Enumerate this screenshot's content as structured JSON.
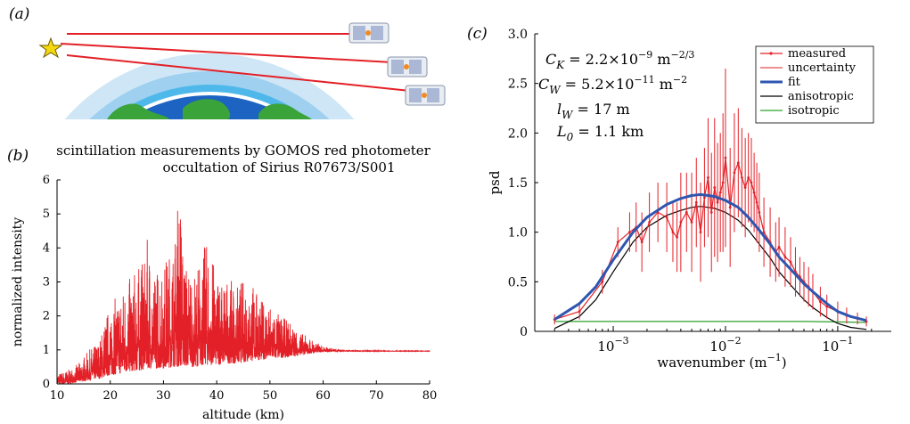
{
  "panel_labels": {
    "a": "(a)",
    "b": "(b)",
    "c": "(c)"
  },
  "colors": {
    "measured": "#e32027",
    "fit": "#2e56b0",
    "anisotropic": "#000000",
    "isotropic": "#2ca02c",
    "earth_ocean": "#1c63c2",
    "earth_land": "#3aa33a",
    "atmosphere_layers": [
      "#cfe6f6",
      "#9fd0f0",
      "#4fb8ea",
      "#ffffff"
    ],
    "star": "#f5d90f"
  },
  "chart_data": [
    {
      "id": "b",
      "type": "area",
      "title": "scintillation measurements by GOMOS red photometer",
      "subtitle": "occultation of Sirius R07673/S001",
      "xlabel": "altitude (km)",
      "ylabel": "normalized intensity",
      "xlim": [
        10,
        80
      ],
      "ylim": [
        0,
        6
      ],
      "xticks": [
        10,
        20,
        30,
        40,
        50,
        60,
        70,
        80
      ],
      "yticks": [
        0,
        1,
        2,
        3,
        4,
        5,
        6
      ],
      "series": [
        {
          "color": "#e32027",
          "envelope_altitude": [
            10,
            12,
            14,
            16,
            18,
            20,
            22,
            24,
            26,
            27,
            28,
            30,
            32,
            33,
            34,
            36,
            38,
            40,
            42,
            44,
            46,
            48,
            50,
            52,
            54,
            56,
            58,
            60,
            62,
            64,
            70,
            80
          ],
          "envelope_upper": [
            0.3,
            0.4,
            0.6,
            1.0,
            1.3,
            2.4,
            2.7,
            3.2,
            3.6,
            4.3,
            3.3,
            3.6,
            4.1,
            5.85,
            3.6,
            3.3,
            4.2,
            3.3,
            3.1,
            2.9,
            3.3,
            2.5,
            2.4,
            2.0,
            1.8,
            1.5,
            1.3,
            1.1,
            1.05,
            1.0,
            0.98,
            0.97
          ],
          "envelope_lower": [
            0.0,
            0.0,
            0.05,
            0.1,
            0.15,
            0.25,
            0.3,
            0.35,
            0.4,
            0.45,
            0.45,
            0.45,
            0.5,
            0.5,
            0.5,
            0.5,
            0.55,
            0.55,
            0.6,
            0.6,
            0.65,
            0.7,
            0.72,
            0.75,
            0.8,
            0.85,
            0.9,
            0.95,
            0.95,
            0.96,
            0.96,
            0.96
          ]
        }
      ]
    },
    {
      "id": "c",
      "type": "line",
      "xlabel": "wavenumber (m",
      "xlabel_sup": "−1",
      "xlabel_tail": ")",
      "ylabel": "psd",
      "xscale": "log",
      "xlim": [
        0.0002,
        0.3
      ],
      "ylim": [
        0,
        3.0
      ],
      "xticks": [
        {
          "value": 0.001,
          "base": "10",
          "exp": "−3"
        },
        {
          "value": 0.01,
          "base": "10",
          "exp": "−2"
        },
        {
          "value": 0.1,
          "base": "10",
          "exp": "−1"
        }
      ],
      "yticks": [
        "0",
        "0.5",
        "1.0",
        "1.5",
        "2.0",
        "2.5",
        "3.0"
      ],
      "annotations": [
        {
          "sym": "C",
          "sub": "K",
          "eq": " = 2.2×10",
          "sup": "−9",
          "unit": " m",
          "unit_sup": "−2/3"
        },
        {
          "sym": "C",
          "sub": "W",
          "eq": " = 5.2×10",
          "sup": "−11",
          "unit": " m",
          "unit_sup": "−2"
        },
        {
          "sym": "l",
          "sub": "W",
          "eq": " = 17 m",
          "sup": "",
          "unit": "",
          "unit_sup": ""
        },
        {
          "sym": "L",
          "sub": "0",
          "eq": " = 1.1 km",
          "sup": "",
          "unit": "",
          "unit_sup": ""
        }
      ],
      "legend_position": "top-right",
      "legend": [
        "measured",
        "uncertainty",
        "fit",
        "anisotropic",
        "isotropic"
      ],
      "series": [
        {
          "name": "measured",
          "x": [
            0.0003,
            0.0005,
            0.0008,
            0.0011,
            0.0014,
            0.0016,
            0.0018,
            0.0021,
            0.0025,
            0.003,
            0.0034,
            0.0037,
            0.004,
            0.0045,
            0.005,
            0.0055,
            0.006,
            0.0065,
            0.007,
            0.0075,
            0.008,
            0.0085,
            0.009,
            0.0095,
            0.01,
            0.011,
            0.012,
            0.013,
            0.014,
            0.015,
            0.016,
            0.017,
            0.018,
            0.019,
            0.02,
            0.022,
            0.025,
            0.028,
            0.03,
            0.034,
            0.038,
            0.042,
            0.046,
            0.05,
            0.055,
            0.06,
            0.07,
            0.08,
            0.1,
            0.12,
            0.15,
            0.18
          ],
          "y": [
            0.12,
            0.2,
            0.5,
            0.9,
            1.0,
            1.05,
            0.9,
            1.1,
            1.2,
            1.15,
            1.0,
            0.95,
            1.1,
            1.2,
            1.1,
            1.3,
            1.0,
            1.35,
            1.55,
            1.2,
            1.45,
            1.3,
            1.4,
            1.5,
            1.75,
            1.25,
            1.6,
            1.7,
            1.55,
            1.45,
            1.55,
            1.5,
            1.4,
            1.3,
            1.2,
            1.0,
            0.9,
            0.8,
            0.85,
            0.75,
            0.7,
            0.6,
            0.55,
            0.5,
            0.45,
            0.4,
            0.3,
            0.25,
            0.2,
            0.16,
            0.13,
            0.1
          ],
          "err": [
            0.05,
            0.08,
            0.12,
            0.15,
            0.2,
            0.25,
            0.3,
            0.3,
            0.3,
            0.35,
            0.3,
            0.35,
            0.5,
            0.4,
            0.5,
            0.45,
            0.5,
            0.5,
            0.6,
            0.6,
            0.7,
            0.6,
            0.6,
            0.7,
            0.9,
            0.6,
            0.6,
            0.55,
            0.5,
            0.5,
            0.45,
            0.45,
            0.4,
            0.4,
            0.4,
            0.35,
            0.35,
            0.3,
            0.3,
            0.3,
            0.25,
            0.25,
            0.2,
            0.2,
            0.2,
            0.18,
            0.15,
            0.12,
            0.1,
            0.08,
            0.06,
            0.05
          ]
        },
        {
          "name": "fit",
          "x": [
            0.0003,
            0.0005,
            0.0007,
            0.001,
            0.0015,
            0.002,
            0.003,
            0.004,
            0.005,
            0.006,
            0.007,
            0.008,
            0.01,
            0.013,
            0.016,
            0.02,
            0.025,
            0.03,
            0.04,
            0.05,
            0.06,
            0.08,
            0.1,
            0.13,
            0.18
          ],
          "y": [
            0.12,
            0.28,
            0.45,
            0.72,
            1.0,
            1.15,
            1.28,
            1.34,
            1.37,
            1.38,
            1.37,
            1.36,
            1.32,
            1.25,
            1.15,
            1.02,
            0.88,
            0.75,
            0.6,
            0.48,
            0.4,
            0.28,
            0.2,
            0.15,
            0.11
          ]
        },
        {
          "name": "anisotropic",
          "x": [
            0.0003,
            0.0005,
            0.0007,
            0.001,
            0.0015,
            0.002,
            0.003,
            0.004,
            0.005,
            0.006,
            0.007,
            0.008,
            0.01,
            0.013,
            0.016,
            0.02,
            0.025,
            0.03,
            0.04,
            0.05,
            0.06,
            0.08,
            0.1,
            0.13,
            0.18
          ],
          "y": [
            0.03,
            0.15,
            0.32,
            0.6,
            0.9,
            1.05,
            1.17,
            1.22,
            1.25,
            1.26,
            1.25,
            1.24,
            1.2,
            1.12,
            1.02,
            0.88,
            0.74,
            0.6,
            0.44,
            0.32,
            0.24,
            0.14,
            0.08,
            0.04,
            0.02
          ]
        },
        {
          "name": "isotropic",
          "x": [
            0.0003,
            0.001,
            0.01,
            0.05,
            0.1,
            0.18
          ],
          "y": [
            0.1,
            0.1,
            0.1,
            0.1,
            0.095,
            0.09
          ]
        }
      ]
    }
  ]
}
